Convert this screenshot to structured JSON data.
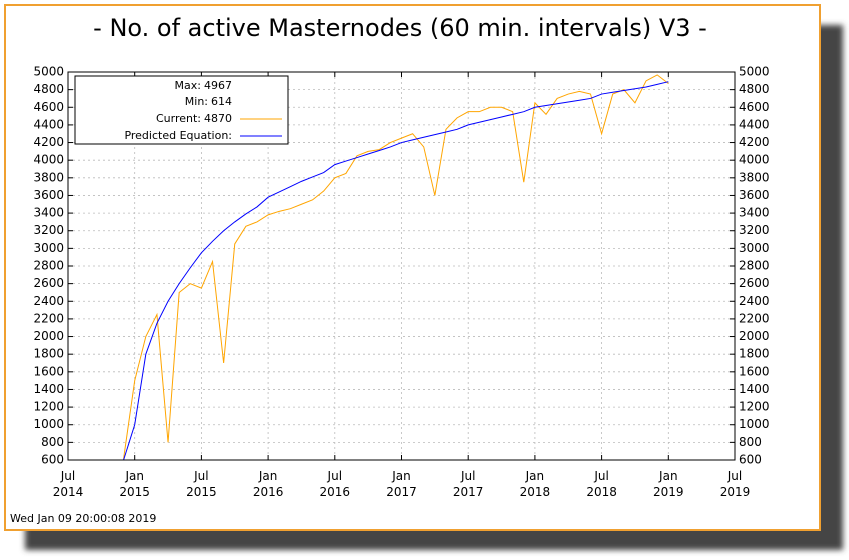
{
  "chart_data": {
    "type": "line",
    "title": "- No. of active Masternodes (60 min. intervals) V3 -",
    "timestamp": "Wed Jan 09 20:00:08 2019",
    "stats": [
      {
        "label": "Max:",
        "value": 4967
      },
      {
        "label": "Min:",
        "value": 614
      }
    ],
    "current": 4870,
    "grid": true,
    "x": [
      "2014-12",
      "2015-01",
      "2015-02",
      "2015-03",
      "2015-04",
      "2015-05",
      "2015-06",
      "2015-07",
      "2015-08",
      "2015-09",
      "2015-10",
      "2015-11",
      "2015-12",
      "2016-01",
      "2016-02",
      "2016-03",
      "2016-04",
      "2016-05",
      "2016-06",
      "2016-07",
      "2016-08",
      "2016-09",
      "2016-10",
      "2016-11",
      "2016-12",
      "2017-01",
      "2017-02",
      "2017-03",
      "2017-04",
      "2017-05",
      "2017-06",
      "2017-07",
      "2017-08",
      "2017-09",
      "2017-10",
      "2017-11",
      "2017-12",
      "2018-01",
      "2018-02",
      "2018-03",
      "2018-04",
      "2018-05",
      "2018-06",
      "2018-07",
      "2018-08",
      "2018-09",
      "2018-10",
      "2018-11",
      "2018-12",
      "2019-01"
    ],
    "series": [
      {
        "name": "Current:",
        "color": "#ffa500",
        "values": [
          614,
          1500,
          2000,
          2250,
          800,
          2500,
          2600,
          2550,
          2850,
          1700,
          3050,
          3250,
          3300,
          3380,
          3420,
          3450,
          3500,
          3550,
          3650,
          3800,
          3850,
          4050,
          4100,
          4120,
          4200,
          4250,
          4300,
          4150,
          3600,
          4350,
          4480,
          4550,
          4550,
          4600,
          4600,
          4550,
          3750,
          4650,
          4520,
          4700,
          4750,
          4780,
          4750,
          4300,
          4750,
          4800,
          4650,
          4900,
          4967,
          4870
        ]
      },
      {
        "name": "Predicted Equation:",
        "color": "#0000ff",
        "values": [
          600,
          1000,
          1800,
          2150,
          2400,
          2600,
          2780,
          2950,
          3080,
          3200,
          3300,
          3390,
          3470,
          3580,
          3640,
          3700,
          3760,
          3810,
          3860,
          3950,
          3990,
          4030,
          4070,
          4110,
          4150,
          4200,
          4230,
          4260,
          4290,
          4320,
          4350,
          4400,
          4430,
          4460,
          4490,
          4520,
          4550,
          4600,
          4620,
          4640,
          4660,
          4680,
          4700,
          4750,
          4770,
          4790,
          4810,
          4830,
          4860,
          4890
        ]
      }
    ],
    "xlim": [
      "2014-07",
      "2019-07"
    ],
    "xticks": [
      {
        "value": "2014-07",
        "label": "Jul\n2014"
      },
      {
        "value": "2015-01",
        "label": "Jan\n2015"
      },
      {
        "value": "2015-07",
        "label": "Jul\n2015"
      },
      {
        "value": "2016-01",
        "label": "Jan\n2016"
      },
      {
        "value": "2016-07",
        "label": "Jul\n2016"
      },
      {
        "value": "2017-01",
        "label": "Jan\n2017"
      },
      {
        "value": "2017-07",
        "label": "Jul\n2017"
      },
      {
        "value": "2018-01",
        "label": "Jan\n2018"
      },
      {
        "value": "2018-07",
        "label": "Jul\n2018"
      },
      {
        "value": "2019-01",
        "label": "Jan\n2019"
      },
      {
        "value": "2019-07",
        "label": "Jul\n2019"
      }
    ],
    "ylim": [
      600,
      5000
    ],
    "yticks": [
      600,
      800,
      1000,
      1200,
      1400,
      1600,
      1800,
      2000,
      2200,
      2400,
      2600,
      2800,
      3000,
      3200,
      3400,
      3600,
      3800,
      4000,
      4200,
      4400,
      4600,
      4800,
      5000
    ]
  }
}
